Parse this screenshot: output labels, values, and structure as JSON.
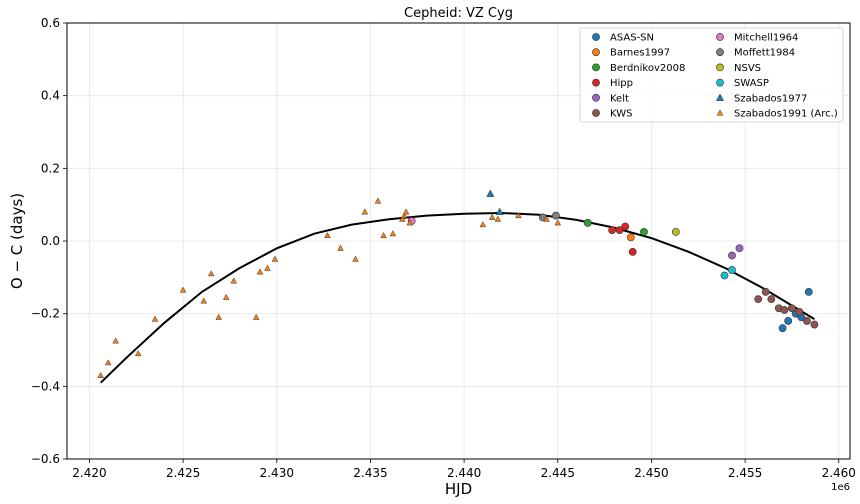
{
  "chart_data": {
    "type": "scatter",
    "title": "Cepheid: VZ Cyg",
    "xlabel": "HJD",
    "ylabel": "O − C (days)",
    "x_offset_label": "1e6",
    "xlim": [
      2418800,
      2460600
    ],
    "ylim": [
      -0.6,
      0.6
    ],
    "x_ticks": [
      2420000,
      2425000,
      2430000,
      2435000,
      2440000,
      2445000,
      2450000,
      2455000,
      2460000
    ],
    "x_tick_labels": [
      "2.420",
      "2.425",
      "2.430",
      "2.435",
      "2.440",
      "2.445",
      "2.450",
      "2.455",
      "2.460"
    ],
    "y_ticks": [
      -0.6,
      -0.4,
      -0.2,
      0.0,
      0.2,
      0.4,
      0.6
    ],
    "y_tick_labels": [
      "−0.6",
      "−0.4",
      "−0.2",
      "0.0",
      "0.2",
      "0.4",
      "0.6"
    ],
    "grid": true,
    "legend_position": "top-right",
    "legend_columns": 2,
    "series": [
      {
        "name": "ASAS-SN",
        "marker": "circle",
        "color": "#1f77b4",
        "points": [
          [
            2457000,
            -0.24
          ],
          [
            2457300,
            -0.22
          ],
          [
            2457700,
            -0.2
          ],
          [
            2458000,
            -0.21
          ],
          [
            2458400,
            -0.14
          ]
        ]
      },
      {
        "name": "Barnes1997",
        "marker": "circle",
        "color": "#ff7f0e",
        "points": [
          [
            2448900,
            0.01
          ]
        ]
      },
      {
        "name": "Berdnikov2008",
        "marker": "circle",
        "color": "#2ca02c",
        "points": [
          [
            2446600,
            0.05
          ],
          [
            2449600,
            0.025
          ]
        ]
      },
      {
        "name": "Hipp",
        "marker": "circle",
        "color": "#d62728",
        "points": [
          [
            2447900,
            0.03
          ],
          [
            2448300,
            0.03
          ],
          [
            2448600,
            0.04
          ],
          [
            2449000,
            -0.03
          ]
        ]
      },
      {
        "name": "Kelt",
        "marker": "circle",
        "color": "#9467bd",
        "points": [
          [
            2454300,
            -0.04
          ],
          [
            2454700,
            -0.02
          ]
        ]
      },
      {
        "name": "KWS",
        "marker": "circle",
        "color": "#8c564b",
        "points": [
          [
            2455700,
            -0.16
          ],
          [
            2456100,
            -0.14
          ],
          [
            2456400,
            -0.16
          ],
          [
            2456800,
            -0.185
          ],
          [
            2457100,
            -0.19
          ],
          [
            2457500,
            -0.185
          ],
          [
            2457900,
            -0.195
          ],
          [
            2458300,
            -0.22
          ],
          [
            2458700,
            -0.23
          ]
        ]
      },
      {
        "name": "Mitchell1964",
        "marker": "circle",
        "color": "#e377c2",
        "points": [
          [
            2437200,
            0.055
          ]
        ]
      },
      {
        "name": "Moffett1984",
        "marker": "circle",
        "color": "#7f7f7f",
        "points": [
          [
            2444200,
            0.065
          ],
          [
            2444900,
            0.07
          ]
        ]
      },
      {
        "name": "NSVS",
        "marker": "circle",
        "color": "#bcbd22",
        "points": [
          [
            2451300,
            0.025
          ]
        ]
      },
      {
        "name": "SWASP",
        "marker": "circle",
        "color": "#17becf",
        "points": [
          [
            2453900,
            -0.095
          ],
          [
            2454300,
            -0.08
          ]
        ]
      },
      {
        "name": "Szabados1977",
        "marker": "triangle",
        "color": "#1f77b4",
        "points": [
          [
            2441400,
            0.13
          ],
          [
            2441900,
            0.08
          ]
        ]
      },
      {
        "name": "Szabados1991 (Arc.)",
        "marker": "triangle-small",
        "color": "#ff7f0e",
        "points": [
          [
            2420600,
            -0.37
          ],
          [
            2421000,
            -0.335
          ],
          [
            2421400,
            -0.275
          ],
          [
            2422600,
            -0.31
          ],
          [
            2423500,
            -0.215
          ],
          [
            2425000,
            -0.135
          ],
          [
            2426100,
            -0.165
          ],
          [
            2426500,
            -0.09
          ],
          [
            2426900,
            -0.21
          ],
          [
            2427300,
            -0.155
          ],
          [
            2427700,
            -0.11
          ],
          [
            2428900,
            -0.21
          ],
          [
            2429100,
            -0.085
          ],
          [
            2429500,
            -0.075
          ],
          [
            2429900,
            -0.05
          ],
          [
            2432700,
            0.015
          ],
          [
            2433400,
            -0.02
          ],
          [
            2434200,
            -0.05
          ],
          [
            2434700,
            0.08
          ],
          [
            2435400,
            0.11
          ],
          [
            2435700,
            0.015
          ],
          [
            2436200,
            0.02
          ],
          [
            2436700,
            0.06
          ],
          [
            2436800,
            0.07
          ],
          [
            2436900,
            0.08
          ],
          [
            2437100,
            0.05
          ],
          [
            2441000,
            0.045
          ],
          [
            2441500,
            0.065
          ],
          [
            2441800,
            0.06
          ],
          [
            2442900,
            0.07
          ],
          [
            2444400,
            0.06
          ],
          [
            2445000,
            0.05
          ]
        ]
      }
    ],
    "fit_curve": {
      "type": "line",
      "color": "#000000",
      "points": [
        [
          2420600,
          -0.39
        ],
        [
          2422000,
          -0.32
        ],
        [
          2424000,
          -0.225
        ],
        [
          2426000,
          -0.14
        ],
        [
          2428000,
          -0.075
        ],
        [
          2430000,
          -0.02
        ],
        [
          2432000,
          0.02
        ],
        [
          2434000,
          0.045
        ],
        [
          2436000,
          0.06
        ],
        [
          2438000,
          0.07
        ],
        [
          2440000,
          0.075
        ],
        [
          2442000,
          0.077
        ],
        [
          2444000,
          0.072
        ],
        [
          2446000,
          0.058
        ],
        [
          2448000,
          0.037
        ],
        [
          2450000,
          0.008
        ],
        [
          2452000,
          -0.03
        ],
        [
          2454000,
          -0.076
        ],
        [
          2456000,
          -0.131
        ],
        [
          2458700,
          -0.215
        ]
      ]
    }
  }
}
